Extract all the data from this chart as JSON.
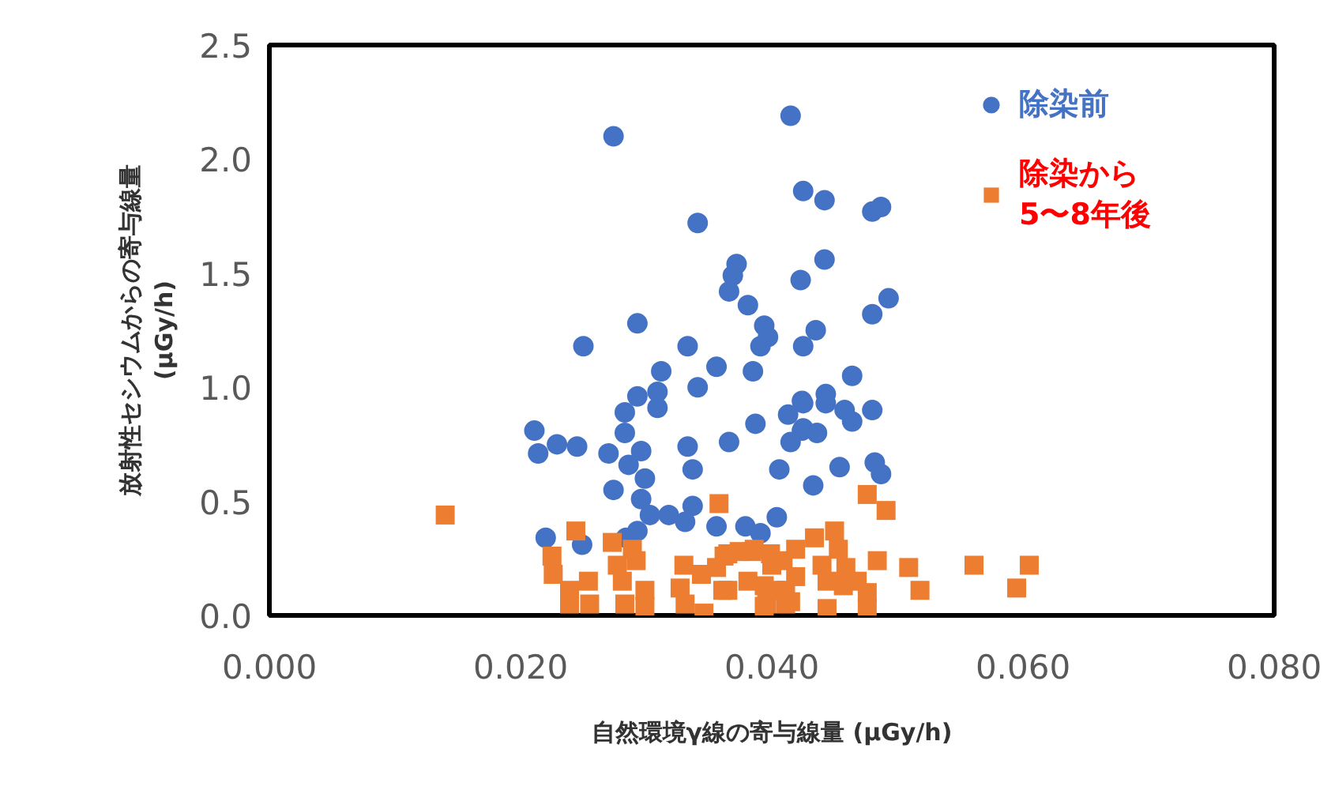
{
  "chart_data": {
    "type": "scatter",
    "xlabel": "自然環境γ線の寄与線量 (μGy/h)",
    "ylabel": "放射性セシウムからの寄与線量\n(μGy/h)",
    "xlim": [
      0,
      0.08
    ],
    "xticks": [
      {
        "value": 0,
        "label": "0.000"
      },
      {
        "value": 0.02,
        "label": "0.020"
      },
      {
        "value": 0.04,
        "label": "0.040"
      },
      {
        "value": 0.06,
        "label": "0.060"
      },
      {
        "value": 0.08,
        "label": "0.080"
      }
    ],
    "ylim": [
      0,
      2.5
    ],
    "yticks": [
      {
        "value": 0,
        "label": "0.0"
      },
      {
        "value": 0.5,
        "label": "0.5"
      },
      {
        "value": 1,
        "label": "1.0"
      },
      {
        "value": 1.5,
        "label": "1.5"
      },
      {
        "value": 2,
        "label": "2.0"
      },
      {
        "value": 2.5,
        "label": "2.5"
      }
    ],
    "grid": false,
    "legend": "top right",
    "series": [
      {
        "name": "除染前",
        "color": "#4472c4",
        "marker": "circle",
        "x": [
          0.0274,
          0.0415,
          0.0425,
          0.0442,
          0.0341,
          0.048,
          0.0487,
          0.0372,
          0.0369,
          0.0366,
          0.0381,
          0.0423,
          0.0442,
          0.0493,
          0.048,
          0.0394,
          0.0397,
          0.0435,
          0.0333,
          0.0425,
          0.0293,
          0.025,
          0.0391,
          0.0312,
          0.0356,
          0.0385,
          0.0341,
          0.0309,
          0.0293,
          0.0309,
          0.0283,
          0.0413,
          0.0424,
          0.0387,
          0.0424,
          0.0415,
          0.0211,
          0.0214,
          0.0229,
          0.0245,
          0.0283,
          0.027,
          0.0286,
          0.0296,
          0.0299,
          0.0333,
          0.0366,
          0.0337,
          0.0406,
          0.0274,
          0.0296,
          0.0303,
          0.0318,
          0.0337,
          0.0331,
          0.0356,
          0.0379,
          0.0391,
          0.0404,
          0.022,
          0.0249,
          0.0284,
          0.0293,
          0.0464,
          0.0443,
          0.0443,
          0.0425,
          0.0458,
          0.0464,
          0.048,
          0.0425,
          0.0436,
          0.0454,
          0.0482,
          0.0487,
          0.0433
        ],
        "values": [
          2.1,
          2.19,
          1.86,
          1.82,
          1.72,
          1.77,
          1.79,
          1.54,
          1.49,
          1.42,
          1.36,
          1.47,
          1.56,
          1.39,
          1.32,
          1.27,
          1.22,
          1.25,
          1.18,
          1.18,
          1.28,
          1.18,
          1.18,
          1.07,
          1.09,
          1.07,
          1.0,
          0.98,
          0.96,
          0.91,
          0.89,
          0.88,
          0.94,
          0.84,
          0.81,
          0.76,
          0.81,
          0.71,
          0.75,
          0.74,
          0.8,
          0.71,
          0.66,
          0.72,
          0.6,
          0.74,
          0.76,
          0.64,
          0.64,
          0.55,
          0.51,
          0.44,
          0.44,
          0.48,
          0.41,
          0.39,
          0.39,
          0.36,
          0.43,
          0.34,
          0.31,
          0.34,
          0.37,
          1.05,
          0.97,
          0.93,
          0.93,
          0.9,
          0.85,
          0.9,
          0.82,
          0.8,
          0.65,
          0.67,
          0.62,
          0.57
        ]
      },
      {
        "name": "除染から\n5〜8年後",
        "color": "#ed7d31",
        "marker": "square",
        "x": [
          0.014,
          0.0244,
          0.0358,
          0.0225,
          0.0226,
          0.0239,
          0.0239,
          0.0254,
          0.0255,
          0.0273,
          0.0277,
          0.0289,
          0.0292,
          0.0281,
          0.0283,
          0.0299,
          0.0299,
          0.033,
          0.0327,
          0.0331,
          0.0344,
          0.0346,
          0.0356,
          0.0365,
          0.0362,
          0.0374,
          0.0386,
          0.0381,
          0.04,
          0.0403,
          0.0396,
          0.0419,
          0.0419,
          0.0415,
          0.0365,
          0.0384,
          0.0399,
          0.0409,
          0.0361,
          0.0394,
          0.0394,
          0.0411,
          0.0411,
          0.0434,
          0.045,
          0.0453,
          0.044,
          0.0459,
          0.0444,
          0.0457,
          0.0444,
          0.0468,
          0.0476,
          0.0476,
          0.0476,
          0.0491,
          0.0484,
          0.0509,
          0.0518,
          0.0561,
          0.0605,
          0.0595
        ],
        "values": [
          0.44,
          0.37,
          0.49,
          0.26,
          0.18,
          0.11,
          0.05,
          0.15,
          0.05,
          0.32,
          0.22,
          0.29,
          0.24,
          0.15,
          0.05,
          0.11,
          0.04,
          0.22,
          0.12,
          0.05,
          0.18,
          0.01,
          0.21,
          0.11,
          0.26,
          0.28,
          0.29,
          0.15,
          0.22,
          0.11,
          0.05,
          0.29,
          0.17,
          0.06,
          0.27,
          0.28,
          0.27,
          0.24,
          0.11,
          0.13,
          0.04,
          0.11,
          0.05,
          0.34,
          0.37,
          0.29,
          0.22,
          0.21,
          0.15,
          0.13,
          0.03,
          0.15,
          0.1,
          0.03,
          0.53,
          0.46,
          0.24,
          0.21,
          0.11,
          0.22,
          0.22,
          0.12
        ]
      }
    ]
  }
}
